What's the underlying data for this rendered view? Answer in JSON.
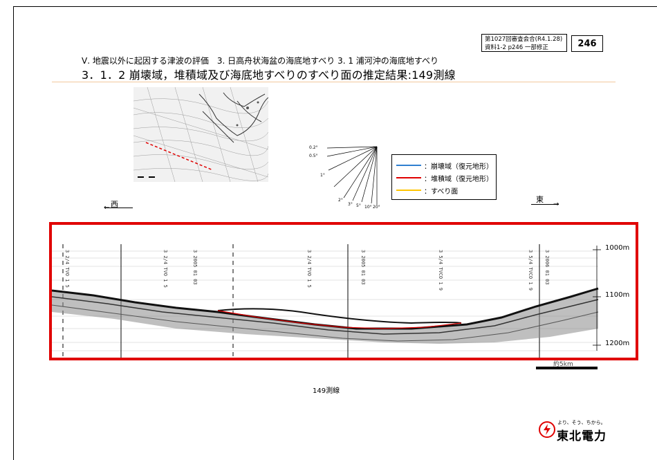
{
  "header": {
    "meeting": "第1027回審査会合(R4.1.28)",
    "doc_ref": "資料1-2 p246 一部修正",
    "page_number": "246"
  },
  "section_title": "Ⅴ. 地震以外に起因する津波の評価　3. 日高舟状海盆の海底地すべり 3. 1 浦河沖の海底地すべり",
  "main_title": "3．1．2 崩壊域，堆積域及び海底地すべりのすべり面の推定結果:149測線",
  "legend": {
    "items": [
      {
        "label": "：崩壊域（復元地形）",
        "color": "#2f7fd0"
      },
      {
        "label": "：堆積域（復元地形）",
        "color": "#e00000"
      },
      {
        "label": "：すべり面",
        "color": "#ffc400"
      }
    ]
  },
  "slope_fan": {
    "labels": [
      "0.2°",
      "0.5°",
      "1°",
      "2°",
      "3°",
      "5°",
      "10°",
      "20°"
    ]
  },
  "directions": {
    "west": "西",
    "east": "東"
  },
  "profile": {
    "depth_labels": [
      "1000m",
      "1100m",
      "1200m"
    ],
    "scale_label": "約5km",
    "caption": "149測線"
  },
  "logo": {
    "tagline": "より、そう、ちから。",
    "company": "東北電力"
  },
  "colors": {
    "frame_red": "#e00000",
    "title_rule": "#f2c79c"
  }
}
